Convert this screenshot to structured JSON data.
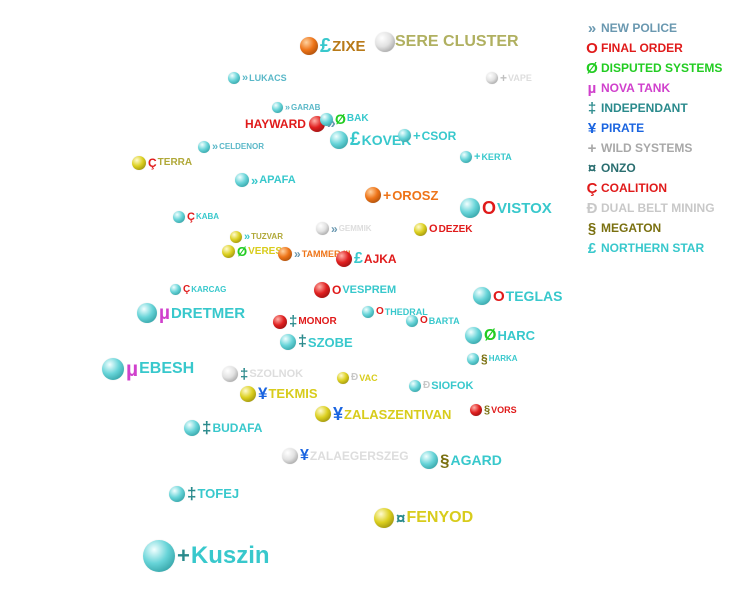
{
  "colors": {
    "cyan": "#38c8cc",
    "red": "#e01a1a",
    "orange": "#ee7418",
    "yellow": "#d8cc1c",
    "white": "#e0e0e0",
    "magenta": "#d040cc",
    "green": "#22cc22",
    "blue": "#1a64e0",
    "olive": "#7a7010",
    "darkteal": "#2a6e70",
    "brown": "#b87a18",
    "khaki": "#b0b060",
    "gray": "#b4b4b4",
    "steel": "#6a98b0",
    "lightgray": "#cccccc"
  },
  "legend": [
    {
      "glyph": "»",
      "label": "NEW POLICE",
      "color": "#6a98b0",
      "icon": "double-chevron-icon"
    },
    {
      "glyph": "O",
      "label": "FINAL ORDER",
      "color": "#e01a1a",
      "icon": "o-icon"
    },
    {
      "glyph": "Ø",
      "label": "DISPUTED SYSTEMS",
      "color": "#22cc22",
      "icon": "slashed-o-icon"
    },
    {
      "glyph": "µ",
      "label": "NOVA TANK",
      "color": "#d040cc",
      "icon": "mu-icon"
    },
    {
      "glyph": "‡",
      "label": "INDEPENDANT",
      "color": "#2a8a8c",
      "icon": "double-dagger-icon"
    },
    {
      "glyph": "¥",
      "label": "PIRATE",
      "color": "#1a64e0",
      "icon": "yen-icon"
    },
    {
      "glyph": "+",
      "label": "WILD SYSTEMS",
      "color": "#a8a8a8",
      "icon": "plus-icon"
    },
    {
      "glyph": "¤",
      "label": "ONZO",
      "color": "#2a6e70",
      "icon": "currency-icon"
    },
    {
      "glyph": "Ç",
      "label": "COALITION",
      "color": "#e01a1a",
      "icon": "c-cedilla-icon"
    },
    {
      "glyph": "Ð",
      "label": "DUAL BELT MINING",
      "color": "#c8c8c8",
      "icon": "eth-icon"
    },
    {
      "glyph": "§",
      "label": "MEGATON",
      "color": "#7a7010",
      "icon": "section-icon"
    },
    {
      "glyph": "£",
      "label": "NORTHERN STAR",
      "color": "#38c8cc",
      "icon": "pound-icon"
    }
  ],
  "systems": [
    {
      "name": "ZIXE",
      "glyph": "£",
      "label_color": "#b87a18",
      "glyph_color": "#38c8cc",
      "orb": "orange"
    },
    {
      "name": "SERE CLUSTER",
      "glyph": "",
      "label_color": "#b0b060",
      "glyph_color": "#b0b060",
      "orb": "white"
    },
    {
      "name": "LUKACS",
      "glyph": "»",
      "label_color": "#5ab8c8",
      "glyph_color": "#5ab8c8",
      "orb": "cyan"
    },
    {
      "name": "VAPE",
      "glyph": "+",
      "label_color": "#dddddd",
      "glyph_color": "#c0c0c0",
      "orb": "white"
    },
    {
      "name": "GARAB",
      "glyph": "»",
      "label_color": "#5ab8c8",
      "glyph_color": "#5ab8c8",
      "orb": "cyan"
    },
    {
      "name": "HAYWARD",
      "glyph": "»",
      "label_color": "#e01a1a",
      "glyph_color": "#6a98b0",
      "orb": "red"
    },
    {
      "name": "BAK",
      "glyph": "Ø",
      "label_color": "#38c8cc",
      "glyph_color": "#22cc22",
      "orb": "cyan"
    },
    {
      "name": "KOVEK",
      "glyph": "£",
      "label_color": "#38c8cc",
      "glyph_color": "#38c8cc",
      "orb": "cyan"
    },
    {
      "name": "CSOR",
      "glyph": "+",
      "label_color": "#38c8cc",
      "glyph_color": "#38c8cc",
      "orb": "cyan"
    },
    {
      "name": "CELDENOR",
      "glyph": "»",
      "label_color": "#5ab8c8",
      "glyph_color": "#5ab8c8",
      "orb": "cyan"
    },
    {
      "name": "KERTA",
      "glyph": "+",
      "label_color": "#38c8cc",
      "glyph_color": "#38c8cc",
      "orb": "cyan"
    },
    {
      "name": "TERRA",
      "glyph": "Ç",
      "label_color": "#b0a838",
      "glyph_color": "#e01a1a",
      "orb": "yellow"
    },
    {
      "name": "APAFA",
      "glyph": "»",
      "label_color": "#38c8cc",
      "glyph_color": "#38c8cc",
      "orb": "cyan"
    },
    {
      "name": "OROSZ",
      "glyph": "+",
      "label_color": "#ee7418",
      "glyph_color": "#ee7418",
      "orb": "orange"
    },
    {
      "name": "VISTOX",
      "glyph": "O",
      "label_color": "#38c8cc",
      "glyph_color": "#e01a1a",
      "orb": "cyan"
    },
    {
      "name": "KABA",
      "glyph": "Ç",
      "label_color": "#38c8cc",
      "glyph_color": "#e01a1a",
      "orb": "cyan"
    },
    {
      "name": "TUZVAR",
      "glyph": "»",
      "label_color": "#b0a838",
      "glyph_color": "#38c8cc",
      "orb": "yellow"
    },
    {
      "name": "GEMMIK",
      "glyph": "»",
      "label_color": "#dddddd",
      "glyph_color": "#6a98b0",
      "orb": "white"
    },
    {
      "name": "DEZEK",
      "glyph": "O",
      "label_color": "#e01a1a",
      "glyph_color": "#e01a1a",
      "orb": "yellow"
    },
    {
      "name": "VERES",
      "glyph": "Ø",
      "label_color": "#d8cc1c",
      "glyph_color": "#22cc22",
      "orb": "yellow"
    },
    {
      "name": "TAMMER III",
      "glyph": "»",
      "label_color": "#ee7418",
      "glyph_color": "#6a98b0",
      "orb": "orange"
    },
    {
      "name": "AJKA",
      "glyph": "£",
      "label_color": "#e01a1a",
      "glyph_color": "#38c8cc",
      "orb": "red"
    },
    {
      "name": "KARCAG",
      "glyph": "Ç",
      "label_color": "#38c8cc",
      "glyph_color": "#e01a1a",
      "orb": "cyan"
    },
    {
      "name": "VESPREM",
      "glyph": "O",
      "label_color": "#38c8cc",
      "glyph_color": "#e01a1a",
      "orb": "red"
    },
    {
      "name": "TEGLAS",
      "glyph": "O",
      "label_color": "#38c8cc",
      "glyph_color": "#e01a1a",
      "orb": "cyan"
    },
    {
      "name": "THEDRAL",
      "glyph": "O",
      "label_color": "#38c8cc",
      "glyph_color": "#e01a1a",
      "orb": "cyan"
    },
    {
      "name": "DRETMER",
      "glyph": "µ",
      "label_color": "#38c8cc",
      "glyph_color": "#d040cc",
      "orb": "cyan"
    },
    {
      "name": "MONOR",
      "glyph": "‡",
      "label_color": "#e01a1a",
      "glyph_color": "#2a8a8c",
      "orb": "red"
    },
    {
      "name": "BARTA",
      "glyph": "O",
      "label_color": "#38c8cc",
      "glyph_color": "#e01a1a",
      "orb": "cyan"
    },
    {
      "name": "HARC",
      "glyph": "Ø",
      "label_color": "#38c8cc",
      "glyph_color": "#22cc22",
      "orb": "cyan"
    },
    {
      "name": "SZOBE",
      "glyph": "‡",
      "label_color": "#38c8cc",
      "glyph_color": "#2a8a8c",
      "orb": "cyan"
    },
    {
      "name": "HARKA",
      "glyph": "§",
      "label_color": "#38c8cc",
      "glyph_color": "#7a7010",
      "orb": "cyan"
    },
    {
      "name": "EBESH",
      "glyph": "µ",
      "label_color": "#38c8cc",
      "glyph_color": "#d040cc",
      "orb": "cyan"
    },
    {
      "name": "SZOLNOK",
      "glyph": "‡",
      "label_color": "#dddddd",
      "glyph_color": "#2a8a8c",
      "orb": "white"
    },
    {
      "name": "VAC",
      "glyph": "Ð",
      "label_color": "#d8cc1c",
      "glyph_color": "#c8c8c8",
      "orb": "yellow"
    },
    {
      "name": "SIOFOK",
      "glyph": "Ð",
      "label_color": "#38c8cc",
      "glyph_color": "#c8c8c8",
      "orb": "cyan"
    },
    {
      "name": "TEKMIS",
      "glyph": "¥",
      "label_color": "#d8cc1c",
      "glyph_color": "#1a64e0",
      "orb": "yellow"
    },
    {
      "name": "VORS",
      "glyph": "§",
      "label_color": "#e01a1a",
      "glyph_color": "#7a7010",
      "orb": "red"
    },
    {
      "name": "ZALASZENTIVAN",
      "glyph": "¥",
      "label_color": "#d8cc1c",
      "glyph_color": "#1a64e0",
      "orb": "yellow"
    },
    {
      "name": "BUDAFA",
      "glyph": "‡",
      "label_color": "#38c8cc",
      "glyph_color": "#2a8a8c",
      "orb": "cyan"
    },
    {
      "name": "ZALAEGERSZEG",
      "glyph": "¥",
      "label_color": "#dddddd",
      "glyph_color": "#1a64e0",
      "orb": "white"
    },
    {
      "name": "AGARD",
      "glyph": "§",
      "label_color": "#38c8cc",
      "glyph_color": "#7a7010",
      "orb": "cyan"
    },
    {
      "name": "TOFEJ",
      "glyph": "‡",
      "label_color": "#38c8cc",
      "glyph_color": "#2a8a8c",
      "orb": "cyan"
    },
    {
      "name": "FENYOD",
      "glyph": "¤",
      "label_color": "#d8cc1c",
      "glyph_color": "#2a8a8c",
      "orb": "yellow"
    },
    {
      "name": "Kuszin",
      "glyph": "+",
      "label_color": "#38c8cc",
      "glyph_color": "#2a8a8c",
      "orb": "cyan"
    }
  ]
}
